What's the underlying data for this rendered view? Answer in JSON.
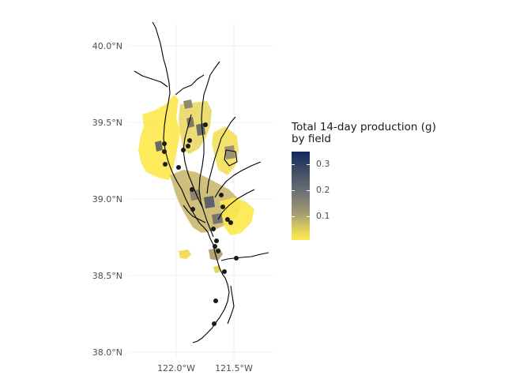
{
  "map": {
    "y_tick_labels": [
      "40.0°N",
      "39.5°N",
      "39.0°N",
      "38.5°N",
      "38.0°N"
    ],
    "x_tick_labels": [
      "122.0°W",
      "121.5°W"
    ],
    "field_fill_low": "#fde84b",
    "field_fill_mid": "#8f8a72",
    "river_color": "#000000",
    "station_color": "#1a1a1a",
    "grid_color": "#ebebeb"
  },
  "legend": {
    "title_line1": "Total 14-day production (g)",
    "title_line2": "by field",
    "ticks": [
      "0.3",
      "0.2",
      "0.1"
    ],
    "color_high": "#11285c",
    "color_low": "#fde84b"
  }
}
